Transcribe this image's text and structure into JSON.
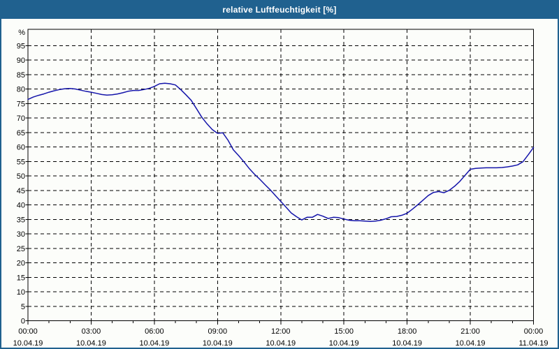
{
  "window": {
    "title": "relative Luftfeuchtigkeit [%]",
    "colors": {
      "title_bar": "#20618f",
      "border": "#20618f",
      "background": "#fcfdfa",
      "grid": "#000000",
      "axis": "#000000",
      "label_text": "#000000",
      "title_text": "#ffffff"
    }
  },
  "chart_data": {
    "type": "line",
    "title": "relative Luftfeuchtigkeit [%]",
    "ylabel": "%",
    "xlabel": "",
    "ylim": [
      0,
      100.6
    ],
    "xlim_hours": [
      0,
      24
    ],
    "grid": "dashed horizontal and vertical",
    "legend_position": "none",
    "line_color": "#1414aa",
    "y_ticks": [
      0,
      5,
      10,
      15,
      20,
      25,
      30,
      35,
      40,
      45,
      50,
      55,
      60,
      65,
      70,
      75,
      80,
      85,
      90,
      95
    ],
    "x_minor_tick_step_hours": 1,
    "x_ticks": [
      {
        "hour": 0,
        "time": "00:00",
        "date": "10.04.19"
      },
      {
        "hour": 3,
        "time": "03:00",
        "date": "10.04.19"
      },
      {
        "hour": 6,
        "time": "06:00",
        "date": "10.04.19"
      },
      {
        "hour": 9,
        "time": "09:00",
        "date": "10.04.19"
      },
      {
        "hour": 12,
        "time": "12:00",
        "date": "10.04.19"
      },
      {
        "hour": 15,
        "time": "15:00",
        "date": "10.04.19"
      },
      {
        "hour": 18,
        "time": "18:00",
        "date": "10.04.19"
      },
      {
        "hour": 21,
        "time": "21:00",
        "date": "10.04.19"
      },
      {
        "hour": 24,
        "time": "00:00",
        "date": "11.04.19"
      }
    ],
    "series": [
      {
        "name": "relative Luftfeuchtigkeit",
        "unit": "%",
        "x_hours": [
          0,
          0.25,
          0.5,
          0.75,
          1,
          1.25,
          1.5,
          1.75,
          2,
          2.25,
          2.5,
          2.75,
          3,
          3.25,
          3.5,
          3.75,
          4,
          4.25,
          4.5,
          4.75,
          5,
          5.25,
          5.5,
          5.75,
          6,
          6.25,
          6.5,
          6.75,
          7,
          7.25,
          7.5,
          7.75,
          8,
          8.25,
          8.5,
          8.75,
          9,
          9.25,
          9.5,
          9.75,
          10,
          10.25,
          10.5,
          10.75,
          11,
          11.25,
          11.5,
          11.75,
          12,
          12.25,
          12.5,
          12.75,
          13,
          13.25,
          13.5,
          13.75,
          14,
          14.25,
          14.5,
          14.75,
          15,
          15.25,
          15.5,
          15.75,
          16,
          16.25,
          16.5,
          16.75,
          17,
          17.25,
          17.5,
          17.75,
          18,
          18.25,
          18.5,
          18.75,
          19,
          19.25,
          19.5,
          19.75,
          20,
          20.25,
          20.5,
          20.75,
          21,
          21.25,
          21.5,
          21.75,
          22,
          22.25,
          22.5,
          22.75,
          23,
          23.25,
          23.5,
          23.75,
          24
        ],
        "values": [
          76.4,
          77.2,
          77.8,
          78.3,
          78.9,
          79.4,
          79.8,
          80.1,
          80.2,
          80.0,
          79.6,
          79.2,
          78.9,
          78.5,
          78.1,
          77.9,
          78.0,
          78.3,
          78.7,
          79.2,
          79.5,
          79.5,
          79.8,
          80.2,
          80.9,
          81.8,
          82.0,
          81.8,
          81.4,
          79.8,
          78.0,
          76.1,
          73.2,
          70.3,
          68.0,
          66.0,
          64.7,
          64.9,
          62.3,
          59.0,
          57.0,
          54.9,
          52.6,
          50.6,
          48.9,
          47.0,
          45.2,
          43.2,
          41.2,
          39.2,
          37.2,
          35.9,
          34.8,
          35.7,
          35.7,
          36.7,
          36.1,
          35.3,
          35.7,
          35.6,
          35.1,
          34.7,
          34.5,
          34.5,
          34.4,
          34.3,
          34.4,
          34.7,
          35.2,
          35.9,
          36.0,
          36.4,
          37.1,
          38.5,
          40.0,
          41.6,
          43.2,
          44.3,
          44.6,
          44.2,
          45.0,
          46.4,
          48.1,
          50.2,
          52.3,
          52.6,
          52.7,
          52.8,
          52.8,
          52.8,
          52.9,
          53.1,
          53.4,
          53.8,
          54.9,
          57.3,
          59.8
        ]
      }
    ]
  }
}
